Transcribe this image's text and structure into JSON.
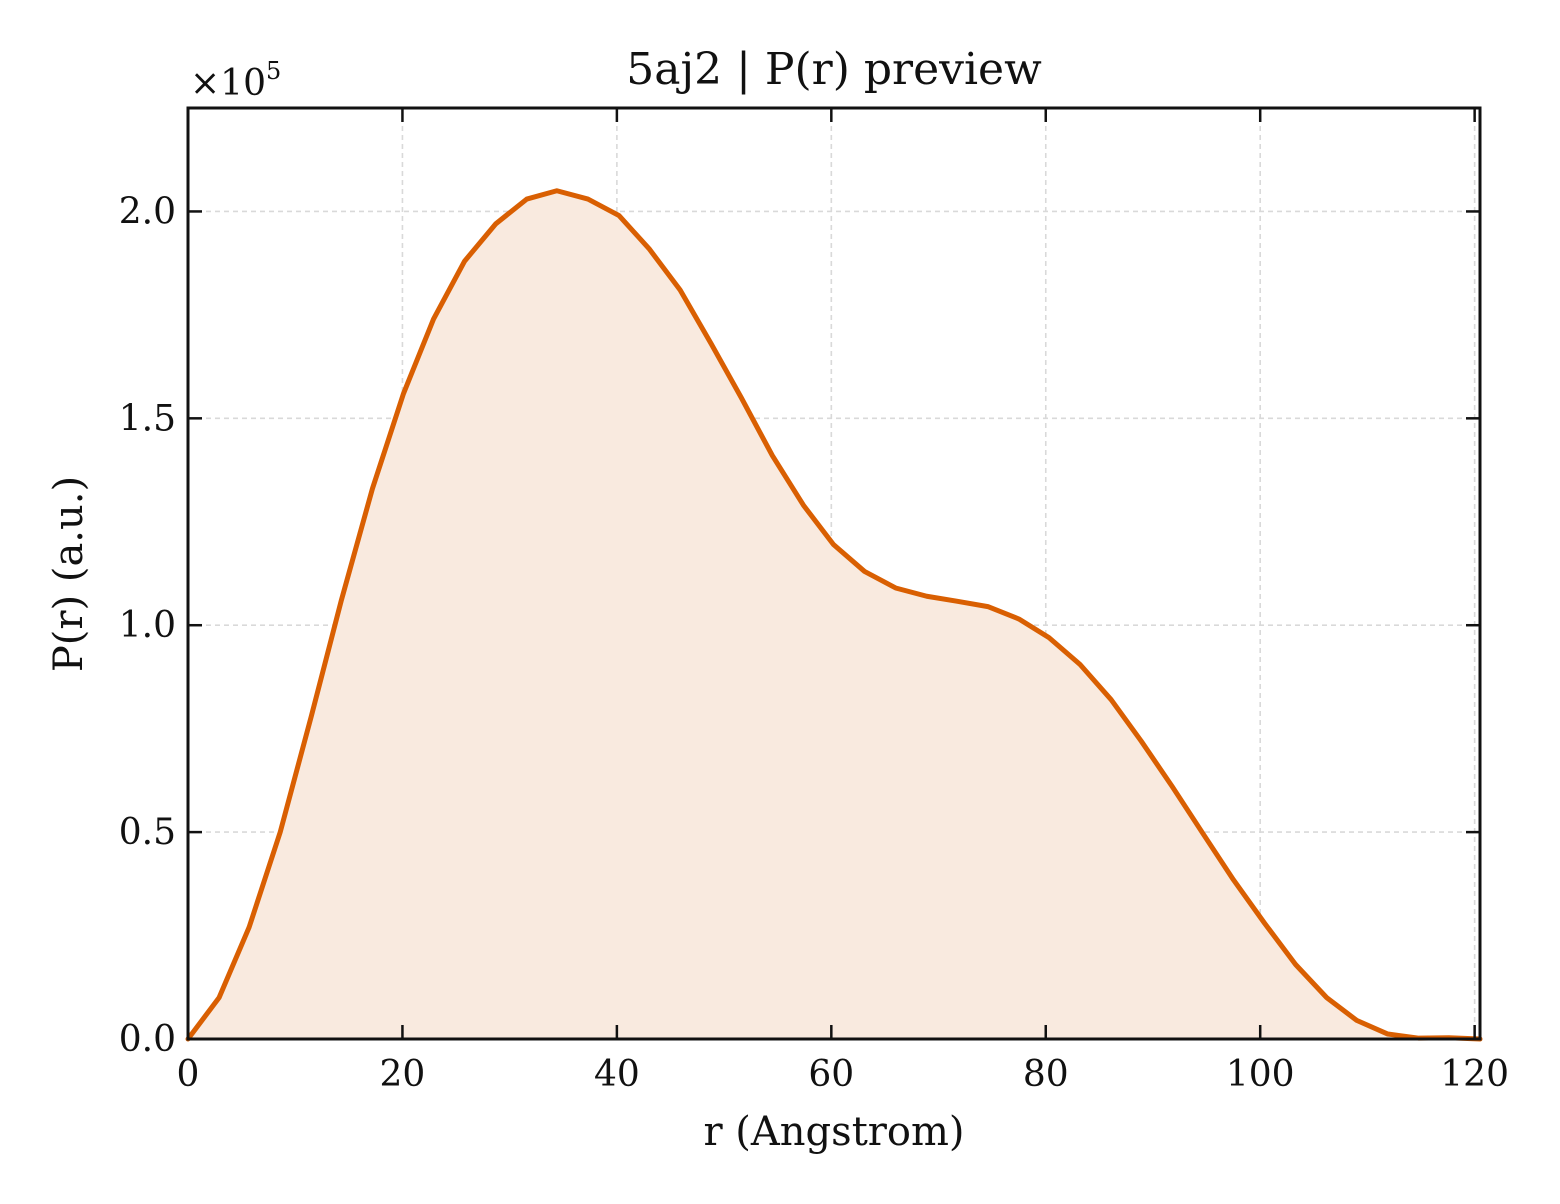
{
  "chart_data": {
    "type": "area",
    "title": "5aj2 | P(r) preview",
    "xlabel": "r (Angstrom)",
    "ylabel": "P(r) (a.u.)",
    "y_multiplier": {
      "base": "×10",
      "exponent": "5"
    },
    "xlim": [
      0,
      120.5
    ],
    "ylim": [
      0,
      2.25
    ],
    "x_ticks": [
      0,
      20,
      40,
      60,
      80,
      100,
      120
    ],
    "x_tick_labels": [
      "0",
      "20",
      "40",
      "60",
      "80",
      "100",
      "120"
    ],
    "y_ticks": [
      0,
      0.5,
      1.0,
      1.5,
      2.0
    ],
    "y_tick_labels": [
      "0.0",
      "0.5",
      "1.0",
      "1.5",
      "2.0"
    ],
    "grid": true,
    "scale_note": "y values in units of 10^5",
    "series": [
      {
        "color": "#D95F02",
        "fill_color": "#F9EADF",
        "x": [
          0,
          2.9,
          5.7,
          8.6,
          11.5,
          14.3,
          17.2,
          20.1,
          22.9,
          25.8,
          28.7,
          31.6,
          34.4,
          37.3,
          40.2,
          43.0,
          45.9,
          48.8,
          51.6,
          54.5,
          57.4,
          60.2,
          63.1,
          66.0,
          68.9,
          71.7,
          74.6,
          77.5,
          80.3,
          83.2,
          86.1,
          88.9,
          91.8,
          94.7,
          97.5,
          100.4,
          103.3,
          106.2,
          109.0,
          111.9,
          114.8,
          117.6,
          120.5
        ],
        "values": [
          0.0,
          0.1,
          0.27,
          0.5,
          0.78,
          1.06,
          1.33,
          1.56,
          1.74,
          1.88,
          1.97,
          2.03,
          2.05,
          2.03,
          1.99,
          1.91,
          1.81,
          1.68,
          1.55,
          1.41,
          1.29,
          1.195,
          1.13,
          1.09,
          1.07,
          1.058,
          1.045,
          1.015,
          0.97,
          0.905,
          0.82,
          0.72,
          0.61,
          0.495,
          0.385,
          0.28,
          0.18,
          0.1,
          0.045,
          0.012,
          0.002,
          0.003,
          0.0
        ]
      }
    ]
  }
}
